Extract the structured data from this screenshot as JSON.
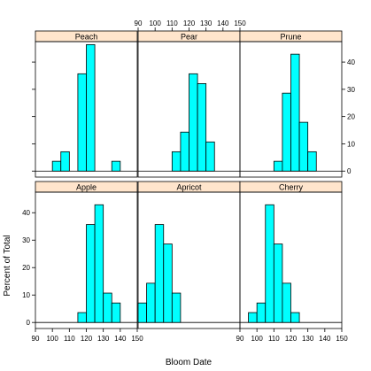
{
  "chart_data": {
    "type": "bar",
    "subtype": "trellis-histogram",
    "xlabel": "Bloom Date",
    "ylabel": "Percent of Total",
    "xlim": [
      90,
      150
    ],
    "ylim": [
      -2.2,
      47.5
    ],
    "x_ticks": [
      "90",
      "100",
      "110",
      "120",
      "130",
      "140",
      "150"
    ],
    "y_ticks": [
      "0",
      "10",
      "20",
      "30",
      "40"
    ],
    "bin_width": 5,
    "layout": "3 columns x 2 rows",
    "strip_color": "#ffe5cc",
    "bar_color": "#00ffff",
    "panels": [
      {
        "name": "Peach",
        "bin_starts": [
          90,
          95,
          100,
          105,
          110,
          115,
          120,
          125,
          130,
          135,
          140,
          145
        ],
        "values": [
          0,
          0,
          3.6,
          7.1,
          0,
          35.7,
          46.4,
          0,
          0,
          3.6,
          0,
          0
        ]
      },
      {
        "name": "Pear",
        "bin_starts": [
          90,
          95,
          100,
          105,
          110,
          115,
          120,
          125,
          130,
          135,
          140,
          145
        ],
        "values": [
          0,
          0,
          0,
          0,
          7.1,
          14.3,
          35.7,
          32.1,
          10.7,
          0,
          0,
          0
        ]
      },
      {
        "name": "Prune",
        "bin_starts": [
          90,
          95,
          100,
          105,
          110,
          115,
          120,
          125,
          130,
          135,
          140,
          145
        ],
        "values": [
          0,
          0,
          0,
          0,
          3.6,
          28.6,
          42.9,
          17.9,
          7.1,
          0,
          0,
          0
        ]
      },
      {
        "name": "Apple",
        "bin_starts": [
          90,
          95,
          100,
          105,
          110,
          115,
          120,
          125,
          130,
          135,
          140,
          145
        ],
        "values": [
          0,
          0,
          0,
          0,
          0,
          3.6,
          35.7,
          42.9,
          10.7,
          7.1,
          0,
          0
        ]
      },
      {
        "name": "Apricot",
        "bin_starts": [
          90,
          95,
          100,
          105,
          110,
          115,
          120,
          125,
          130,
          135,
          140,
          145
        ],
        "values": [
          7.1,
          14.3,
          35.7,
          28.6,
          10.7,
          0,
          0,
          0,
          0,
          0,
          0,
          0
        ]
      },
      {
        "name": "Cherry",
        "bin_starts": [
          90,
          95,
          100,
          105,
          110,
          115,
          120,
          125,
          130,
          135,
          140,
          145
        ],
        "values": [
          0,
          3.6,
          7.1,
          42.9,
          28.6,
          14.3,
          3.6,
          0,
          0,
          0,
          0,
          0
        ]
      }
    ]
  }
}
